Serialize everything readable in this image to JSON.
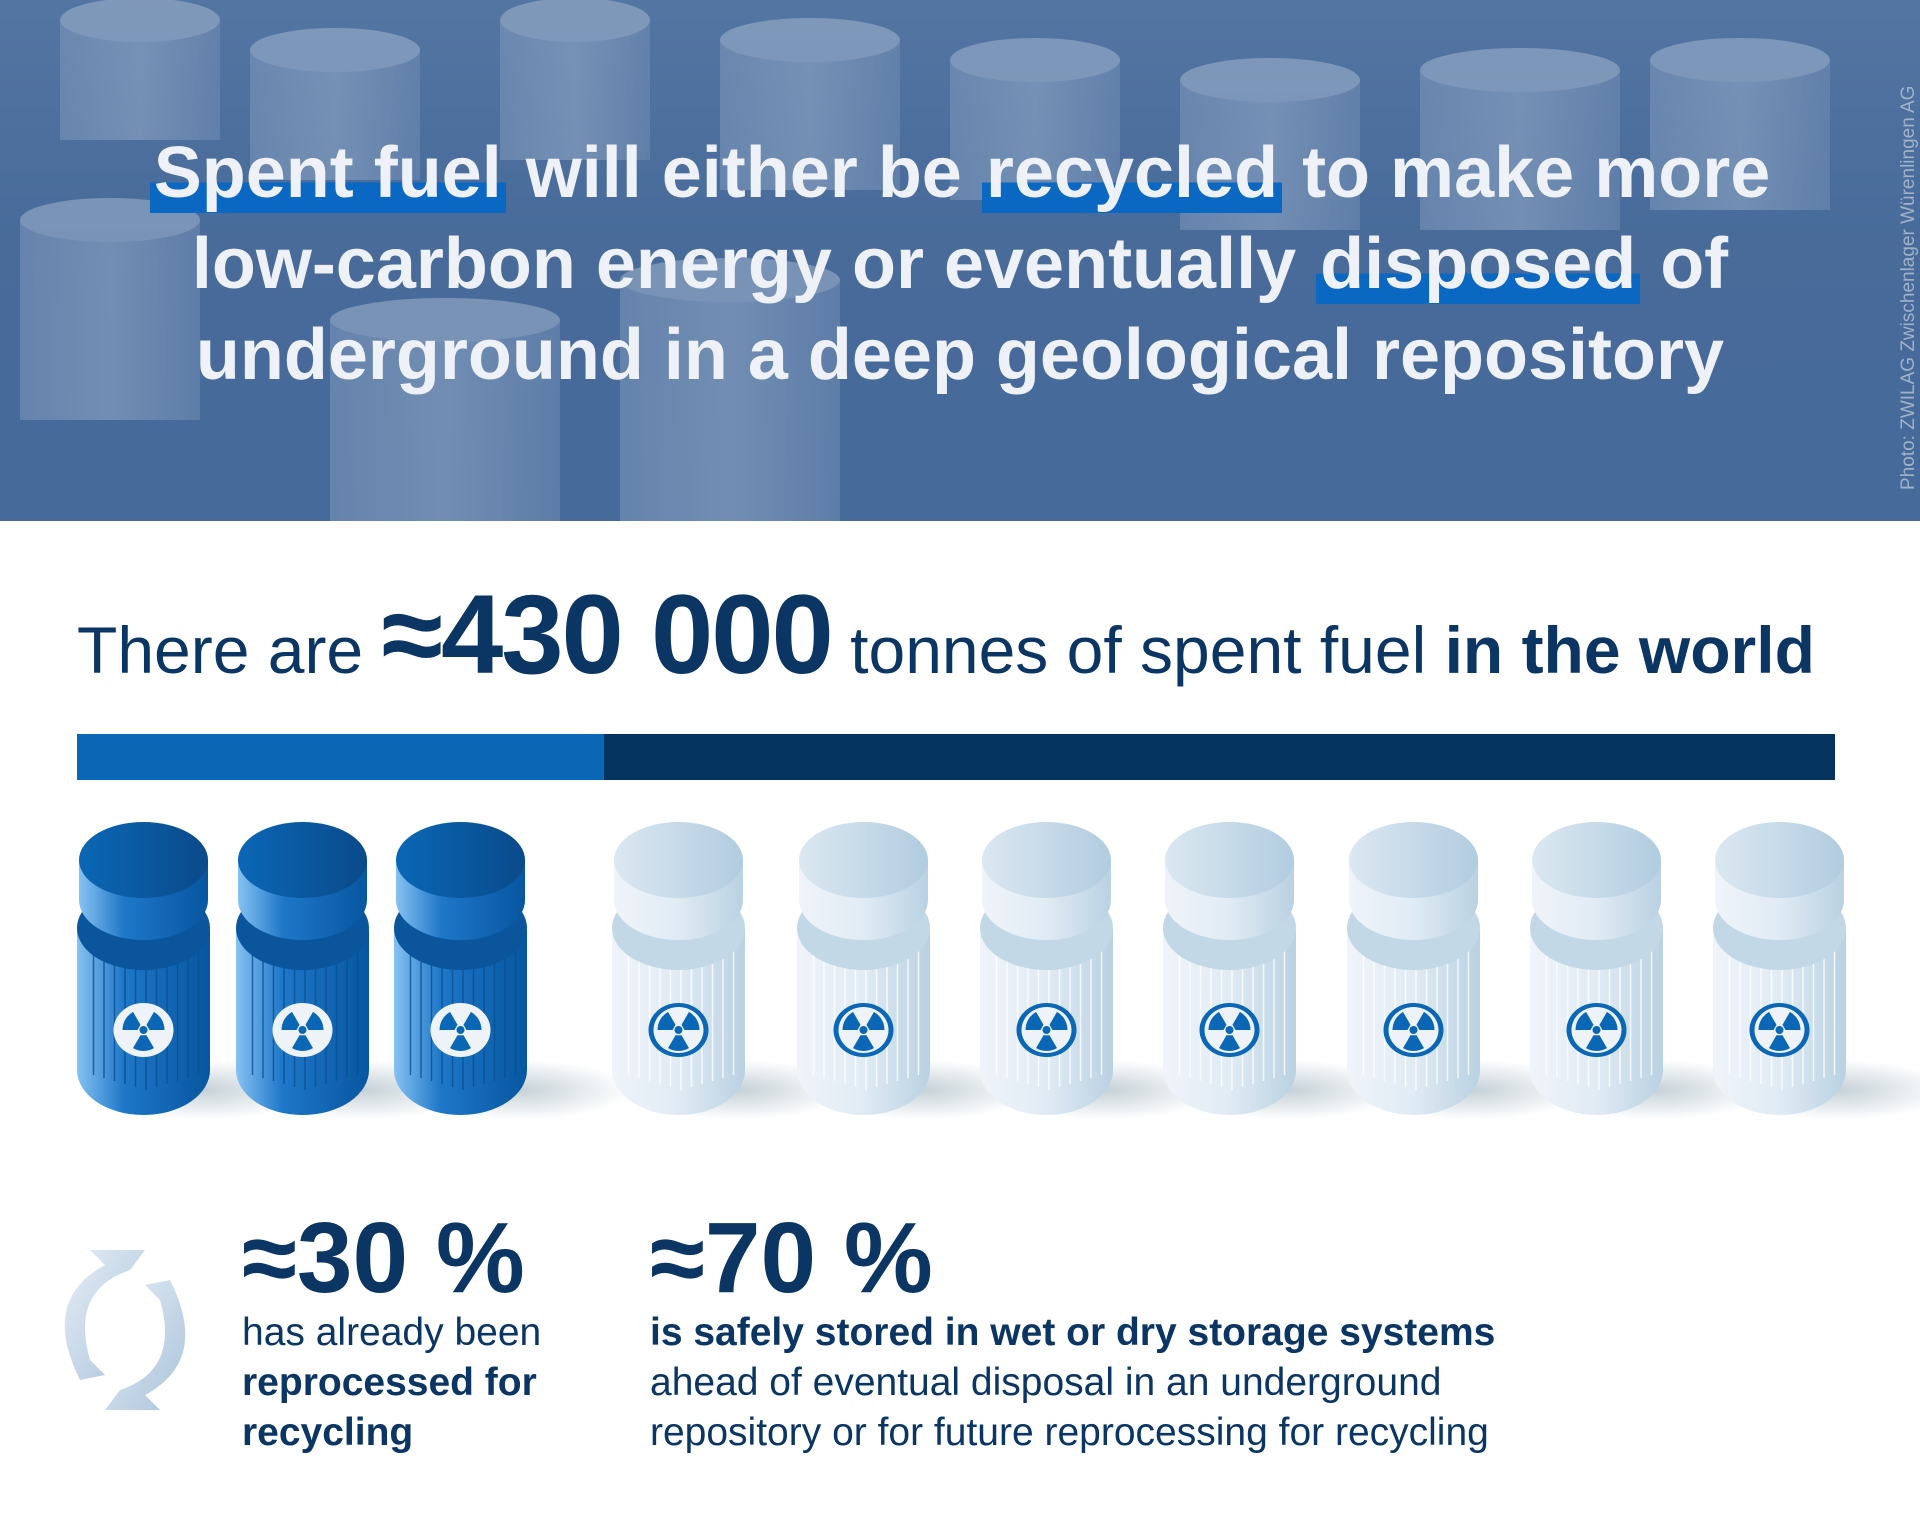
{
  "header": {
    "headline": {
      "line1": [
        {
          "text": "Spent fuel",
          "hl": true
        },
        {
          "text": " will either be ",
          "hl": false
        },
        {
          "text": "recycled",
          "hl": true
        },
        {
          "text": " to make more",
          "hl": false
        }
      ],
      "line2": [
        {
          "text": "low-carbon energy or eventually ",
          "hl": false
        },
        {
          "text": "disposed",
          "hl": true
        },
        {
          "text": " of",
          "hl": false
        }
      ],
      "line3": [
        {
          "text": "underground in a deep geological repository",
          "hl": false
        }
      ]
    },
    "photo_credit": "Photo: ZWILAG Zwischenlager Würenlingen AG"
  },
  "total": {
    "prefix": "There are ",
    "number": "≈430 000",
    "middle": " tonnes of spent fuel ",
    "suffix": "in the world"
  },
  "split_bar": {
    "recycled_percent": 30,
    "stored_percent": 70,
    "recycled_color": "#0a67b5",
    "stored_color": "#05335f"
  },
  "canisters": {
    "recycled_count": 3,
    "stored_count": 7,
    "icon": "radiation-icon"
  },
  "stats": {
    "recycled": {
      "pct": "≈30 %",
      "line1": "has already been",
      "line2": "reprocessed for",
      "line3": "recycling",
      "icon": "recycle-icon"
    },
    "stored": {
      "pct": "≈70 %",
      "line1": "is safely stored in wet or dry storage systems",
      "line2": "ahead of eventual disposal in an underground",
      "line3": "repository or for future reprocessing for recycling"
    }
  },
  "colors": {
    "dark_navy": "#0b3562",
    "accent_blue": "#0a67c2"
  }
}
